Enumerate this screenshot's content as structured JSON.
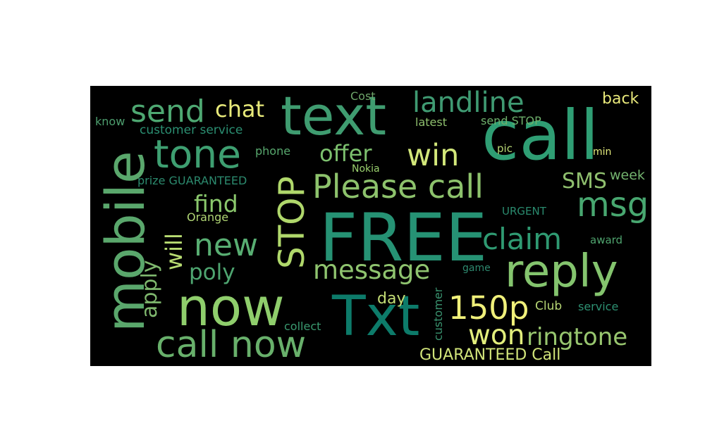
{
  "words": [
    {
      "text": "call",
      "color": "#2f9e74"
    },
    {
      "text": "FREE",
      "color": "#269274"
    },
    {
      "text": "now",
      "color": "#8fce6c"
    },
    {
      "text": "text",
      "color": "#3f9c70"
    },
    {
      "text": "Txt",
      "color": "#0d7b6a"
    },
    {
      "text": "mobile",
      "color": "#5aa76c"
    },
    {
      "text": "reply",
      "color": "#84c46e"
    },
    {
      "text": "call now",
      "color": "#68b06b"
    },
    {
      "text": "tone",
      "color": "#3e9f71"
    },
    {
      "text": "STOP",
      "color": "#b0d86b"
    },
    {
      "text": "Please call",
      "color": "#8dc26c"
    },
    {
      "text": "150p",
      "color": "#f0f07a"
    },
    {
      "text": "message",
      "color": "#8fc46f"
    },
    {
      "text": "send",
      "color": "#4ea872"
    },
    {
      "text": "landline",
      "color": "#3f9a72"
    },
    {
      "text": "msg",
      "color": "#48a770"
    },
    {
      "text": "new",
      "color": "#58ae72"
    },
    {
      "text": "win",
      "color": "#d2e77a"
    },
    {
      "text": "claim",
      "color": "#2f9a72"
    },
    {
      "text": "won",
      "color": "#e2ee7c"
    },
    {
      "text": "ringtone",
      "color": "#98c66f"
    },
    {
      "text": "chat",
      "color": "#e8ea7a"
    },
    {
      "text": "offer",
      "color": "#7cc06e"
    },
    {
      "text": "find",
      "color": "#8ac76c"
    },
    {
      "text": "poly",
      "color": "#4ea570"
    },
    {
      "text": "will",
      "color": "#b8dc72"
    },
    {
      "text": "apply",
      "color": "#7fb86e"
    },
    {
      "text": "SMS",
      "color": "#8fbf6e"
    },
    {
      "text": "GUARANTEED Call",
      "color": "#d1e47a"
    },
    {
      "text": "back",
      "color": "#e8e87a"
    },
    {
      "text": "customer service",
      "color": "#2b8f72"
    },
    {
      "text": "day",
      "color": "#c4de76"
    },
    {
      "text": "Club",
      "color": "#b6d674"
    },
    {
      "text": "week",
      "color": "#73b36e"
    },
    {
      "text": "phone",
      "color": "#58a86e"
    },
    {
      "text": "prize GUARANTEED",
      "color": "#2c8a6e"
    },
    {
      "text": "know",
      "color": "#4d9e6e"
    },
    {
      "text": "Cost",
      "color": "#6ea56a"
    },
    {
      "text": "latest",
      "color": "#8fc06e"
    },
    {
      "text": "send STOP",
      "color": "#6eb06c"
    },
    {
      "text": "pic",
      "color": "#b8d874"
    },
    {
      "text": "min",
      "color": "#e3ea7c"
    },
    {
      "text": "Nokia",
      "color": "#9ad06e"
    },
    {
      "text": "Orange",
      "color": "#b0d674"
    },
    {
      "text": "URGENT",
      "color": "#2a8a6e"
    },
    {
      "text": "award",
      "color": "#4fa46e"
    },
    {
      "text": "game",
      "color": "#2e8a70"
    },
    {
      "text": "service",
      "color": "#2d9072"
    },
    {
      "text": "collect",
      "color": "#3a9a70"
    },
    {
      "text": "customer",
      "color": "#3a9470"
    }
  ]
}
